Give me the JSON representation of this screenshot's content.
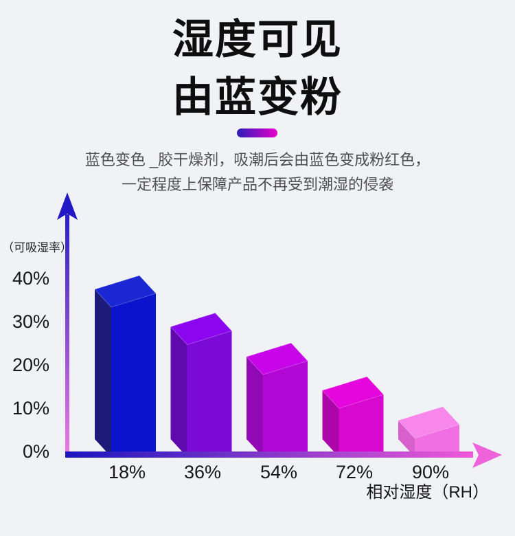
{
  "page": {
    "background": "#f1f2f6"
  },
  "title": {
    "line1": "湿度可见",
    "line2": "由蓝变粉",
    "color": "#0e0e0e"
  },
  "divider_pill": {
    "gradient": [
      "#2a1db6",
      "#e800cc"
    ]
  },
  "subtitle": {
    "line1": "蓝色变色 _胶干燥剂，吸潮后会由蓝色变成粉红色，",
    "line2": "一定程度上保障产品不再受到潮湿的侵袭",
    "color": "#4f4f4f"
  },
  "chart_data": {
    "type": "bar",
    "title": "",
    "categories": [
      "18%",
      "36%",
      "54%",
      "72%",
      "90%"
    ],
    "values": [
      40,
      30,
      22,
      13,
      5
    ],
    "xlabel": "相对湿度（RH）",
    "ylabel": "（可吸湿率）",
    "yticks": [
      "40%",
      "30%",
      "20%",
      "10%",
      "0%"
    ],
    "ylim": [
      0,
      45
    ],
    "grid": false,
    "legend": false,
    "style": "pseudo-3d",
    "bar_colors": [
      {
        "front": "#0c13cd",
        "side": "#1c1b7a",
        "top": "#1b27d2"
      },
      {
        "front": "#7c0ad6",
        "side": "#6009ad",
        "top": "#8b06ee"
      },
      {
        "front": "#b307d6",
        "side": "#9208b4",
        "top": "#c705e8"
      },
      {
        "front": "#d708d0",
        "side": "#ad06a8",
        "top": "#e406dc"
      },
      {
        "front": "#f070e4",
        "side": "#d860cc",
        "top": "#f787ea"
      }
    ],
    "y_axis_gradient": [
      "#2a1ec9",
      "#f07ae2"
    ],
    "x_axis_gradient": [
      "#1a16bb",
      "#ee5ad8"
    ],
    "y_arrow_color": "#2318c6",
    "x_arrow_color": "#ee62da"
  }
}
